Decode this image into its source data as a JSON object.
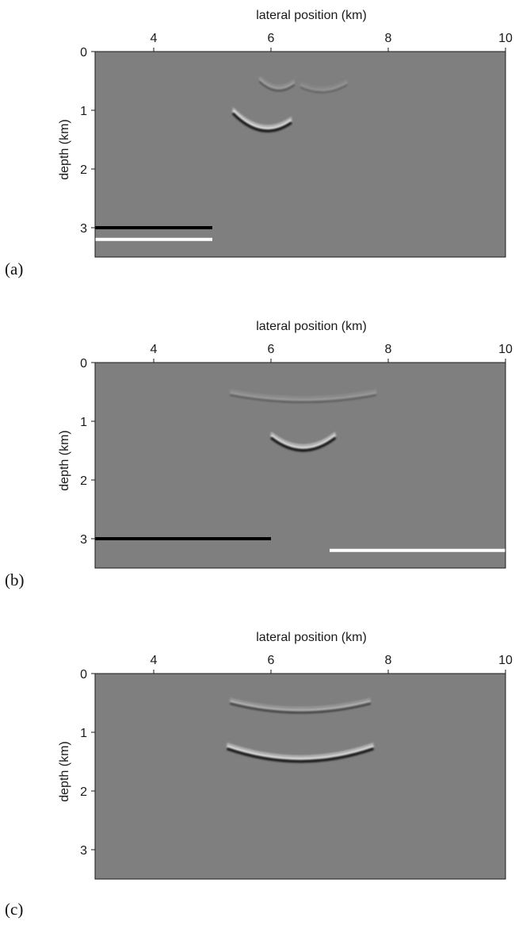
{
  "chart_data": [
    {
      "type": "heatmap",
      "panel": "(a)",
      "xlabel": "lateral position (km)",
      "ylabel": "depth (km)",
      "xlim": [
        3,
        10
      ],
      "ylim": [
        0,
        3.5
      ],
      "x_ticks": [
        4,
        6,
        8,
        10
      ],
      "y_ticks": [
        0,
        1,
        2,
        3
      ],
      "background_color": "#7f7f7f",
      "bars": [
        {
          "color": "black",
          "x": [
            3,
            5
          ],
          "depth": 3.0
        },
        {
          "color": "white",
          "x": [
            3,
            5
          ],
          "depth": 3.2
        }
      ],
      "reflectors": [
        {
          "xc": 5.85,
          "z": 1.3,
          "w": 0.5,
          "strength": 1.0,
          "tilt": 0.08
        },
        {
          "xc": 6.1,
          "z": 0.62,
          "w": 0.3,
          "strength": 0.35,
          "tilt": 0.03
        },
        {
          "xc": 6.9,
          "z": 0.65,
          "w": 0.4,
          "strength": 0.2,
          "tilt": -0.02
        }
      ]
    },
    {
      "type": "heatmap",
      "panel": "(b)",
      "xlabel": "lateral position (km)",
      "ylabel": "depth (km)",
      "xlim": [
        3,
        10
      ],
      "ylim": [
        0,
        3.5
      ],
      "x_ticks": [
        4,
        6,
        8,
        10
      ],
      "y_ticks": [
        0,
        1,
        2,
        3
      ],
      "background_color": "#7f7f7f",
      "bars": [
        {
          "color": "black",
          "x": [
            3,
            6
          ],
          "depth": 3.0
        },
        {
          "color": "white",
          "x": [
            7,
            10
          ],
          "depth": 3.2
        }
      ],
      "reflectors": [
        {
          "xc": 6.55,
          "z": 1.45,
          "w": 0.55,
          "strength": 1.0,
          "tilt": 0.0
        },
        {
          "xc": 6.55,
          "z": 0.63,
          "w": 1.25,
          "strength": 0.3,
          "tilt": 0.0
        }
      ]
    },
    {
      "type": "heatmap",
      "panel": "(c)",
      "xlabel": "lateral position (km)",
      "ylabel": "depth (km)",
      "xlim": [
        3,
        10
      ],
      "ylim": [
        0,
        3.5
      ],
      "x_ticks": [
        4,
        6,
        8,
        10
      ],
      "y_ticks": [
        0,
        1,
        2,
        3
      ],
      "background_color": "#7f7f7f",
      "bars": [],
      "reflectors": [
        {
          "xc": 6.5,
          "z": 1.45,
          "w": 1.25,
          "strength": 1.0,
          "tilt": 0.0
        },
        {
          "xc": 6.5,
          "z": 0.62,
          "w": 1.2,
          "strength": 0.55,
          "tilt": 0.0
        }
      ]
    }
  ]
}
